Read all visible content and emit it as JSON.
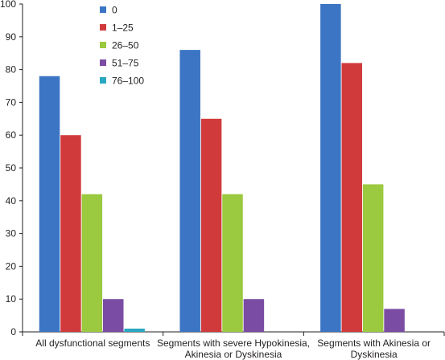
{
  "chart_data": {
    "type": "bar",
    "title": "",
    "xlabel": "",
    "ylabel": "",
    "ylim": [
      0,
      100
    ],
    "yticks": [
      0,
      10,
      20,
      30,
      40,
      50,
      60,
      70,
      80,
      90,
      100
    ],
    "grid": false,
    "legend_position": "top-left",
    "categories": [
      [
        "All dysfunctional segments"
      ],
      [
        "Segments with severe Hypokinesia,",
        "Akinesia or Dyskinesia"
      ],
      [
        "Segments with Akinesia or",
        "Dyskinesia"
      ]
    ],
    "series": [
      {
        "name": "0",
        "color": "#3b75c4",
        "values": [
          78,
          86,
          100
        ]
      },
      {
        "name": "1–25",
        "color": "#d13a3a",
        "values": [
          60,
          65,
          82
        ]
      },
      {
        "name": "26–50",
        "color": "#9bc93f",
        "values": [
          42,
          42,
          45
        ]
      },
      {
        "name": "51–75",
        "color": "#7a4ca3",
        "values": [
          10,
          10,
          7
        ]
      },
      {
        "name": "76–100",
        "color": "#2aa8c2",
        "values": [
          1,
          0,
          0
        ]
      }
    ]
  }
}
